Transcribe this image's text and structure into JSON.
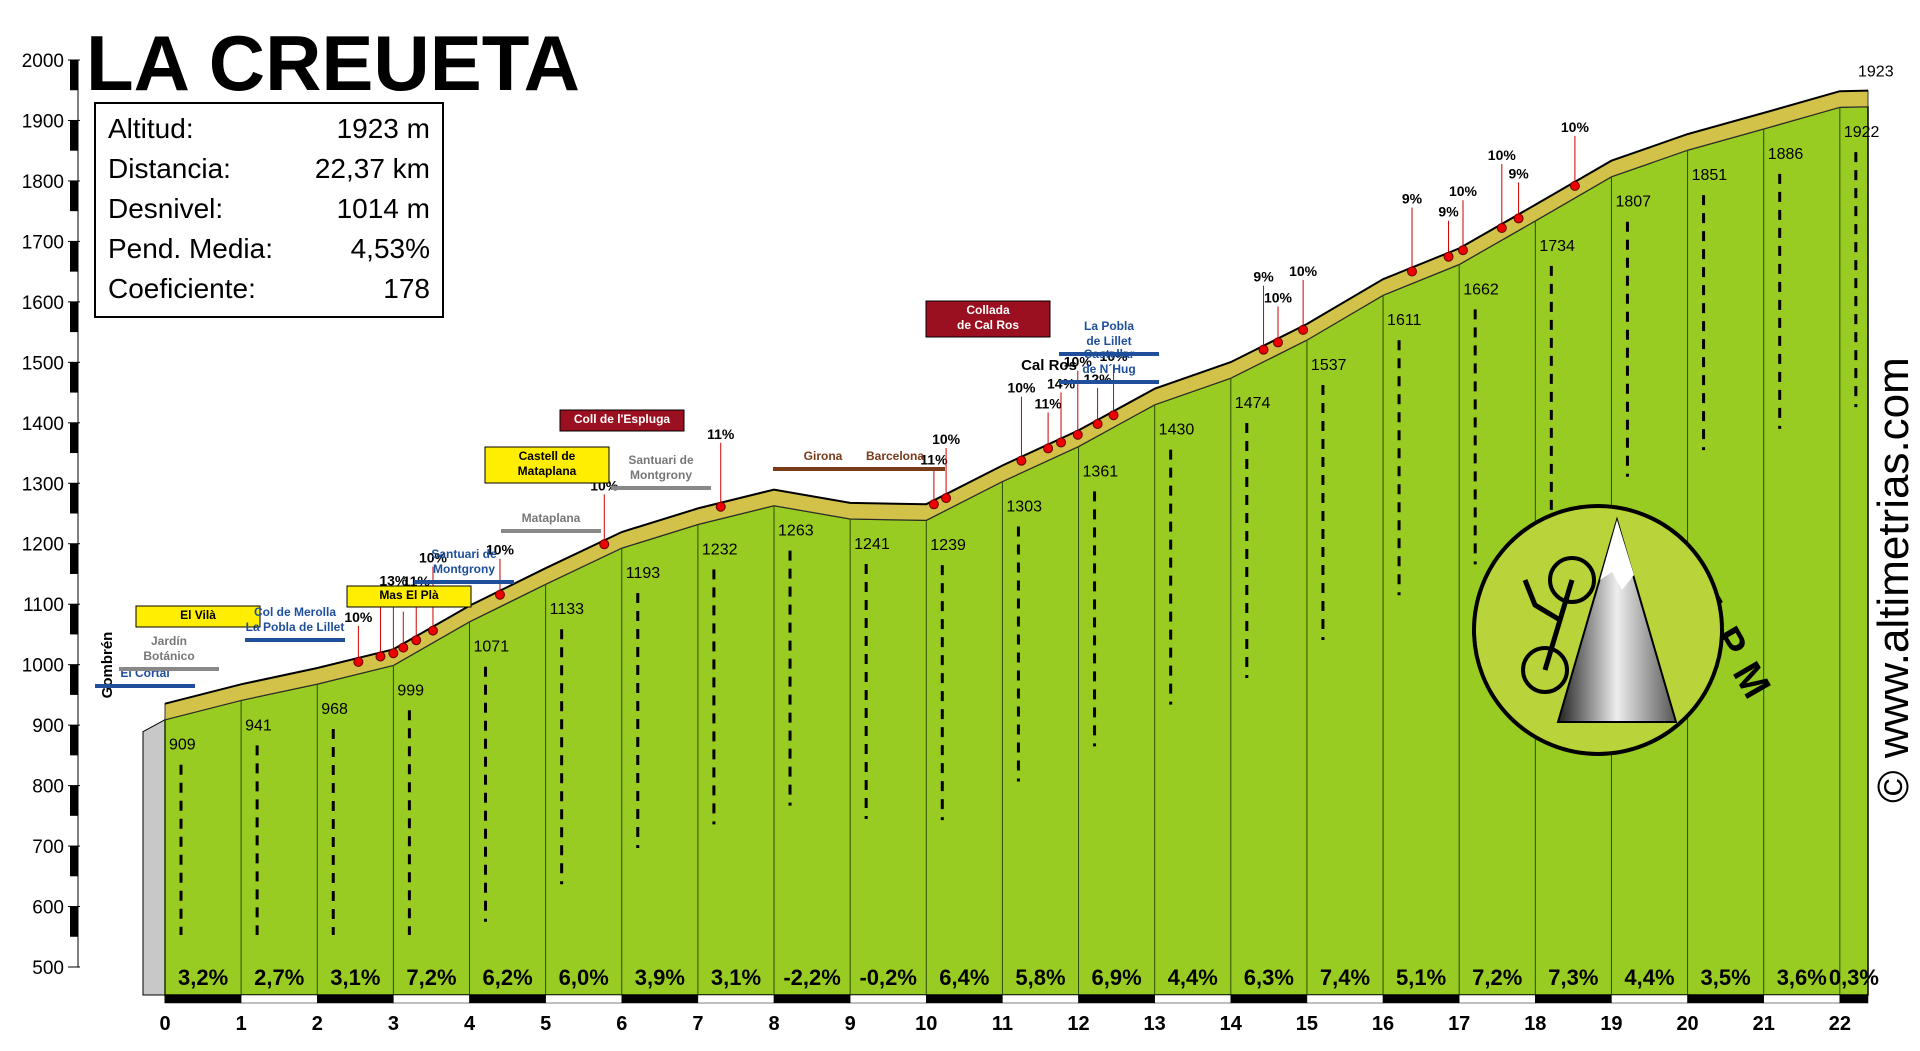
{
  "title": "LA CREUETA",
  "stats": [
    {
      "label": "Altitud:",
      "value": "1923 m"
    },
    {
      "label": "Distancia:",
      "value": "22,37 km"
    },
    {
      "label": "Desnivel:",
      "value": "1014 m"
    },
    {
      "label": "Pend. Media:",
      "value": "4,53%"
    },
    {
      "label": "Coeficiente:",
      "value": "178"
    }
  ],
  "chart_data": {
    "type": "area",
    "x": [
      0,
      1,
      2,
      3,
      4,
      5,
      6,
      7,
      8,
      9,
      10,
      11,
      12,
      13,
      14,
      15,
      16,
      17,
      18,
      19,
      20,
      21,
      22,
      22.37
    ],
    "values": [
      909,
      941,
      968,
      999,
      1071,
      1133,
      1193,
      1232,
      1263,
      1241,
      1239,
      1303,
      1361,
      1430,
      1474,
      1537,
      1611,
      1662,
      1734,
      1807,
      1851,
      1886,
      1922,
      1923
    ],
    "xlim": [
      0,
      22.37
    ],
    "xticks": [
      0,
      1,
      2,
      3,
      4,
      5,
      6,
      7,
      8,
      9,
      10,
      11,
      12,
      13,
      14,
      15,
      16,
      17,
      18,
      19,
      20,
      21,
      22
    ],
    "ylim": [
      500,
      2000
    ],
    "yticks": [
      500,
      600,
      700,
      800,
      900,
      1000,
      1100,
      1200,
      1300,
      1400,
      1500,
      1600,
      1700,
      1800,
      1900,
      2000
    ],
    "color": "#99cc22",
    "gradient_labels": [
      "3,2%",
      "2,7%",
      "3,1%",
      "7,2%",
      "6,2%",
      "6,0%",
      "3,9%",
      "3,1%",
      "-2,2%",
      "-0,2%",
      "6,4%",
      "5,8%",
      "6,9%",
      "4,4%",
      "6,3%",
      "7,4%",
      "5,1%",
      "7,2%",
      "7,3%",
      "4,4%",
      "3,5%",
      "3,6%",
      "0,3%"
    ],
    "annotations": [
      {
        "x": 2.54,
        "label": "10%"
      },
      {
        "x": 2.83,
        "label": "11%"
      },
      {
        "x": 3.0,
        "label": "13%"
      },
      {
        "x": 3.13,
        "label": "10%"
      },
      {
        "x": 3.3,
        "label": "11%"
      },
      {
        "x": 3.52,
        "label": "10%"
      },
      {
        "x": 4.4,
        "label": "10%"
      },
      {
        "x": 5.77,
        "label": "10%"
      },
      {
        "x": 7.3,
        "label": "11%"
      },
      {
        "x": 10.1,
        "label": "11%"
      },
      {
        "x": 10.26,
        "label": "10%"
      },
      {
        "x": 11.25,
        "label": "10%"
      },
      {
        "x": 11.6,
        "label": "11%"
      },
      {
        "x": 11.77,
        "label": "14%"
      },
      {
        "x": 11.99,
        "label": "10%"
      },
      {
        "x": 12.25,
        "label": "12%"
      },
      {
        "x": 12.46,
        "label": "10%"
      },
      {
        "x": 14.43,
        "label": "9%"
      },
      {
        "x": 14.62,
        "label": "10%"
      },
      {
        "x": 14.95,
        "label": "10%"
      },
      {
        "x": 16.38,
        "label": "9%"
      },
      {
        "x": 16.86,
        "label": "9%"
      },
      {
        "x": 17.05,
        "label": "10%"
      },
      {
        "x": 17.56,
        "label": "10%"
      },
      {
        "x": 17.78,
        "label": "9%"
      },
      {
        "x": 18.52,
        "label": "10%"
      }
    ]
  },
  "places": [
    {
      "lines": [
        "Gombrén"
      ]
    },
    {
      "lines": [
        "El Cortal"
      ]
    },
    {
      "lines": [
        "Jardín",
        "Botánico"
      ]
    },
    {
      "lines": [
        "El Vilà"
      ]
    },
    {
      "lines": [
        "Col de Merolla",
        "La Pobla de Lillet"
      ]
    },
    {
      "lines": [
        "Mas El Plà"
      ]
    },
    {
      "lines": [
        "Santuari de",
        "Montgrony"
      ]
    },
    {
      "lines": [
        "Castell de",
        "Mataplana"
      ]
    },
    {
      "lines": [
        "Mataplana"
      ]
    },
    {
      "lines": [
        "Coll de l'Espluga"
      ]
    },
    {
      "lines": [
        "Santuari de",
        "Montgrony"
      ]
    },
    {
      "lines": [
        "Girona"
      ]
    },
    {
      "lines": [
        "Barcelona"
      ]
    },
    {
      "lines": [
        "Collada",
        "de Cal Ros"
      ]
    },
    {
      "lines": [
        "Cal Ros"
      ]
    },
    {
      "lines": [
        "La Pobla",
        "de Lillet"
      ]
    },
    {
      "lines": [
        "Castellar",
        "de N´Hug"
      ]
    }
  ],
  "logo": "APM",
  "credit": "© www.altimetrias.com"
}
